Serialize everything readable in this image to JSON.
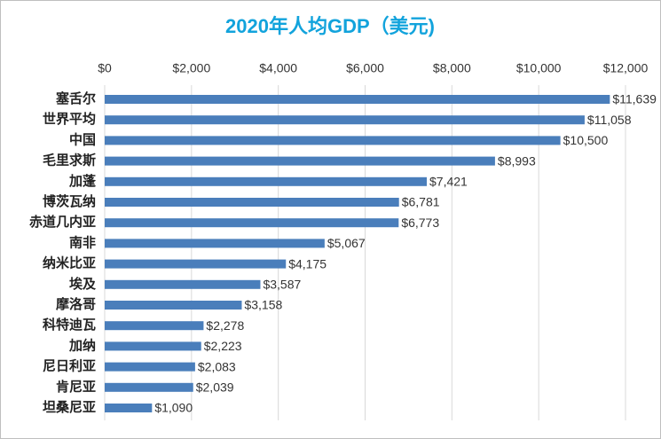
{
  "chart_data": {
    "type": "barh",
    "title": "2020年人均GDP（美元)",
    "categories": [
      "塞舌尔",
      "世界平均",
      "中国",
      "毛里求斯",
      "加蓬",
      "博茨瓦纳",
      "赤道几内亚",
      "南非",
      "纳米比亚",
      "埃及",
      "摩洛哥",
      "科特迪瓦",
      "加纳",
      "尼日利亚",
      "肯尼亚",
      "坦桑尼亚"
    ],
    "values": [
      11639,
      11058,
      10500,
      8993,
      7421,
      6781,
      6773,
      5067,
      4175,
      3587,
      3158,
      2278,
      2223,
      2083,
      2039,
      1090
    ],
    "value_labels": [
      "$11,639",
      "$11,058",
      "$10,500",
      "$8,993",
      "$7,421",
      "$6,781",
      "$6,773",
      "$5,067",
      "$4,175",
      "$3,587",
      "$3,158",
      "$2,278",
      "$2,223",
      "$2,083",
      "$2,039",
      "$1,090"
    ],
    "color": "#4a7ebb",
    "xlim": [
      0,
      12000
    ],
    "xticks": [
      {
        "value": 0,
        "label": "$0"
      },
      {
        "value": 2000,
        "label": "$2,000"
      },
      {
        "value": 4000,
        "label": "$4,000"
      },
      {
        "value": 6000,
        "label": "$6,000"
      },
      {
        "value": 8000,
        "label": "$8,000"
      },
      {
        "value": 10000,
        "label": "$10,000"
      },
      {
        "value": 12000,
        "label": "$12,000"
      }
    ],
    "grid": true
  }
}
